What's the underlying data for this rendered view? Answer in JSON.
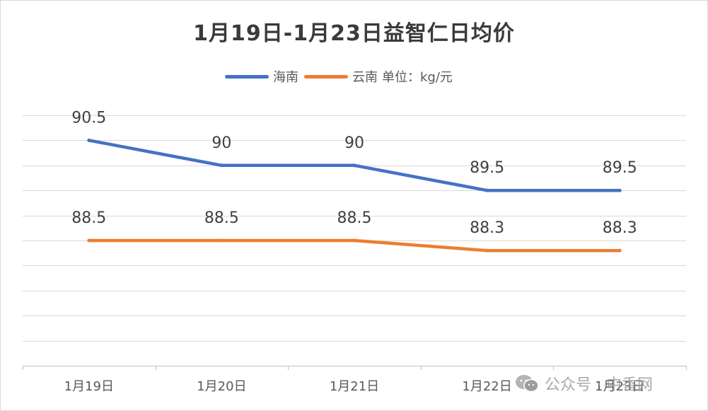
{
  "chart_data": {
    "type": "line",
    "title": "1月19日-1月23日益智仁日均价",
    "categories": [
      "1月19日",
      "1月20日",
      "1月21日",
      "1月22日",
      "1月23日"
    ],
    "series": [
      {
        "name": "海南",
        "color": "#4472C4",
        "values": [
          90.5,
          90,
          90,
          89.5,
          89.5
        ],
        "labels": [
          "90.5",
          "90",
          "90",
          "89.5",
          "89.5"
        ]
      },
      {
        "name": "云南",
        "color": "#ED7D31",
        "values": [
          88.5,
          88.5,
          88.5,
          88.3,
          88.3
        ],
        "labels": [
          "88.5",
          "88.5",
          "88.5",
          "88.3",
          "88.3"
        ]
      }
    ],
    "unit_note": "单位：kg/元",
    "ylim": [
      86,
      91
    ],
    "grid": true,
    "legend_position": "top"
  },
  "watermark": {
    "text": "公众号 · 中香网",
    "icon": "wechat-icon"
  }
}
